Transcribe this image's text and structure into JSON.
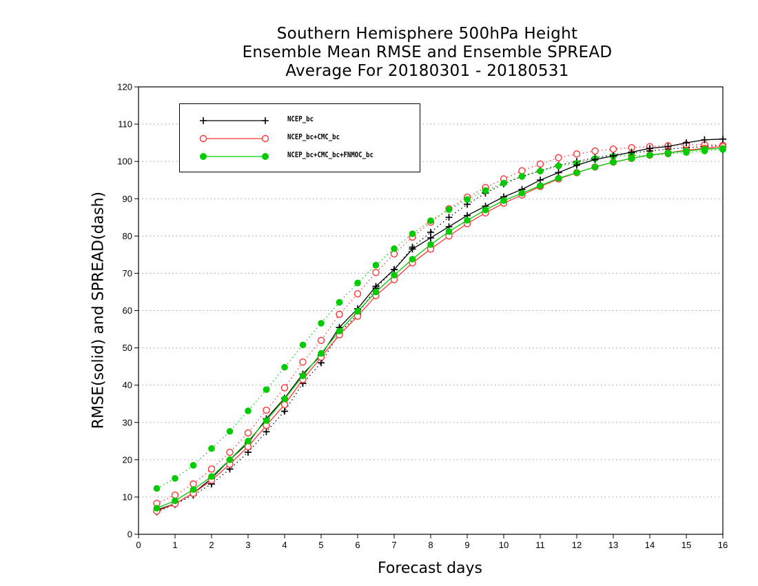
{
  "title_lines": [
    "Southern Hemisphere 500hPa Height",
    "Ensemble Mean RMSE and Ensemble SPREAD",
    "Average For 20180301 - 20180531"
  ],
  "chart_data": {
    "type": "line",
    "title": "Southern Hemisphere 500hPa Height / Ensemble Mean RMSE and Ensemble SPREAD / Average For 20180301 - 20180531",
    "xlabel": "Forecast days",
    "ylabel": "RMSE(solid) and SPREAD(dash)",
    "xlim": [
      0,
      16
    ],
    "ylim": [
      0,
      120
    ],
    "xticks": [
      "0",
      "1",
      "2",
      "3",
      "4",
      "5",
      "6",
      "7",
      "8",
      "9",
      "10",
      "11",
      "12",
      "13",
      "14",
      "15",
      "16"
    ],
    "yticks": [
      "0",
      "10",
      "20",
      "30",
      "40",
      "50",
      "60",
      "70",
      "80",
      "90",
      "100",
      "110",
      "120"
    ],
    "grid": "horizontal dotted",
    "legend_position": "top-left",
    "x": [
      0.5,
      1,
      1.5,
      2,
      2.5,
      3,
      3.5,
      4,
      4.5,
      5,
      5.5,
      6,
      6.5,
      7,
      7.5,
      8,
      8.5,
      9,
      9.5,
      10,
      10.5,
      11,
      11.5,
      12,
      12.5,
      13,
      13.5,
      14,
      14.5,
      15,
      15.5,
      16
    ],
    "series": [
      {
        "name": "NCEP_bc",
        "color": "#000000",
        "marker": "plus",
        "rmse": [
          6.5,
          8.2,
          11.0,
          15.0,
          20.0,
          24.5,
          31.0,
          36.5,
          43.0,
          48.0,
          55.5,
          60.5,
          66.5,
          71.0,
          76.5,
          79.5,
          82.5,
          85.5,
          88.0,
          90.5,
          92.5,
          95.0,
          97.0,
          99.0,
          100.5,
          101.5,
          102.5,
          103.5,
          104.0,
          105.0,
          105.8,
          106.0
        ],
        "spread": [
          6.0,
          8.0,
          10.5,
          13.5,
          17.5,
          22.0,
          27.5,
          33.0,
          40.5,
          46.0,
          54.0,
          59.0,
          66.0,
          71.0,
          77.0,
          81.0,
          85.0,
          88.5,
          91.5,
          94.0,
          96.0,
          97.5,
          99.0,
          100.0,
          101.0,
          101.8,
          102.3,
          102.8,
          103.3,
          103.7,
          104.0,
          104.3
        ]
      },
      {
        "name": "NCEP_bc+CMC_bc",
        "color": "#ff3333",
        "marker": "open-circle",
        "rmse": [
          6.2,
          8.2,
          11.0,
          14.5,
          18.8,
          23.5,
          29.2,
          34.8,
          41.5,
          47.5,
          53.5,
          58.5,
          64.0,
          68.3,
          72.8,
          76.5,
          80.0,
          83.3,
          86.2,
          88.8,
          91.0,
          93.3,
          95.3,
          97.0,
          98.5,
          99.8,
          100.8,
          101.7,
          102.3,
          103.0,
          103.5,
          104.0
        ],
        "spread": [
          8.3,
          10.5,
          13.5,
          17.5,
          22.0,
          27.2,
          33.3,
          39.3,
          46.2,
          52.0,
          59.0,
          64.5,
          70.2,
          75.2,
          79.7,
          83.7,
          87.3,
          90.4,
          93.0,
          95.3,
          97.5,
          99.3,
          101.0,
          102.0,
          102.8,
          103.3,
          103.7,
          104.0,
          104.2,
          104.5,
          104.5,
          104.3
        ]
      },
      {
        "name": "NCEP_bc+CMC_bc+FNMOC_bc",
        "color": "#00cc00",
        "marker": "filled-circle",
        "rmse": [
          7.0,
          9.0,
          12.0,
          15.5,
          20.0,
          25.0,
          30.5,
          36.3,
          42.5,
          48.5,
          54.5,
          59.8,
          65.0,
          69.5,
          73.8,
          77.7,
          81.2,
          84.2,
          87.0,
          89.5,
          91.5,
          93.5,
          95.5,
          97.0,
          98.5,
          99.8,
          100.8,
          101.7,
          102.3,
          102.8,
          103.3,
          103.5
        ],
        "spread": [
          12.3,
          15.0,
          18.5,
          23.0,
          27.6,
          33.1,
          38.8,
          44.8,
          50.8,
          56.6,
          62.2,
          67.4,
          72.2,
          76.6,
          80.6,
          84.1,
          87.1,
          89.8,
          92.2,
          94.2,
          96.0,
          97.4,
          98.8,
          99.5,
          100.8,
          101.4,
          101.6,
          101.6,
          102.0,
          102.4,
          102.8,
          103.2
        ]
      }
    ]
  }
}
